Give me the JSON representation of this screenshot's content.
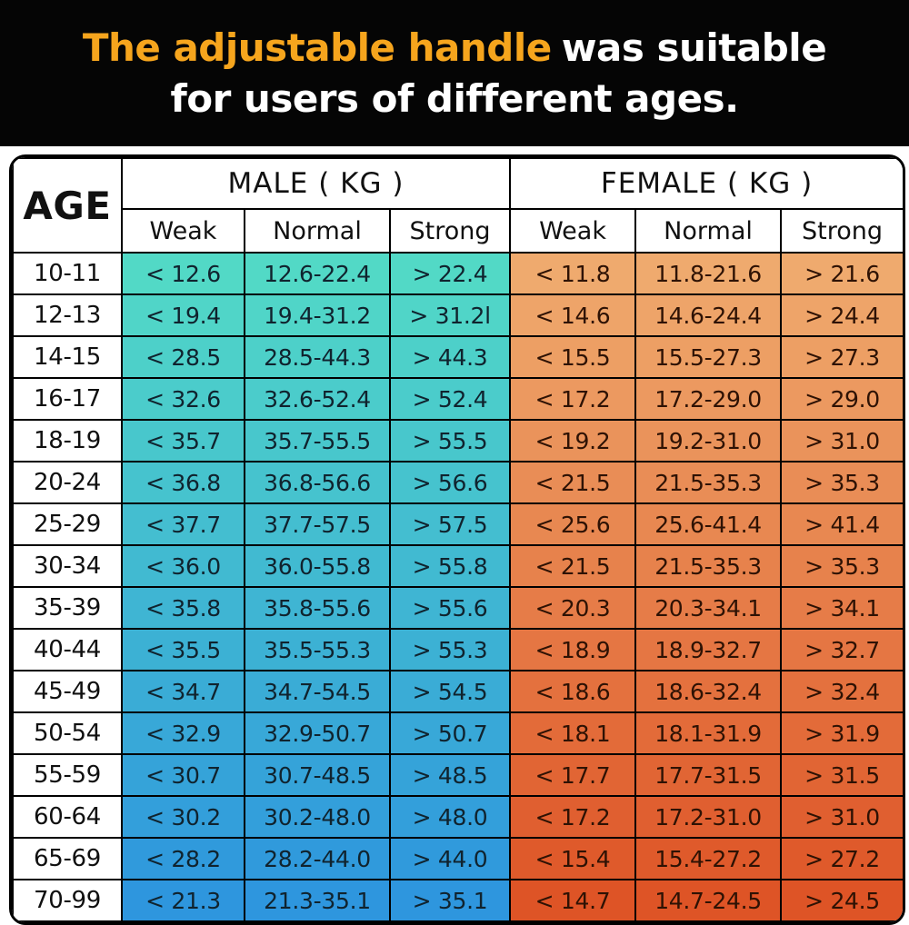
{
  "banner": {
    "title_highlight": "The adjustable handle",
    "title_rest": "was suitable",
    "title_line2": "for users of different ages.",
    "highlight_color": "#F6A51D"
  },
  "chart_data": {
    "type": "table",
    "title": "The adjustable handle was suitable for users of different ages.",
    "age_header": "AGE",
    "groups": [
      {
        "label": "MALE ( KG )",
        "sub": [
          "Weak",
          "Normal",
          "Strong"
        ]
      },
      {
        "label": "FEMALE ( KG )",
        "sub": [
          "Weak",
          "Normal",
          "Strong"
        ]
      }
    ],
    "colors": {
      "male_gradient_top": "#52D9C6",
      "male_gradient_bottom": "#2E96DE",
      "female_gradient_top": "#EFAA6E",
      "female_gradient_bottom": "#DE5426",
      "male_text": "#10232E",
      "female_text": "#2E1204"
    },
    "rows": [
      {
        "age": "10-11",
        "male": [
          "< 12.6",
          "12.6-22.4",
          "> 22.4"
        ],
        "female": [
          "< 11.8",
          "11.8-21.6",
          "> 21.6"
        ]
      },
      {
        "age": "12-13",
        "male": [
          "< 19.4",
          "19.4-31.2",
          "> 31.2l"
        ],
        "female": [
          "< 14.6",
          "14.6-24.4",
          "> 24.4"
        ]
      },
      {
        "age": "14-15",
        "male": [
          "< 28.5",
          "28.5-44.3",
          "> 44.3"
        ],
        "female": [
          "< 15.5",
          "15.5-27.3",
          "> 27.3"
        ]
      },
      {
        "age": "16-17",
        "male": [
          "< 32.6",
          "32.6-52.4",
          "> 52.4"
        ],
        "female": [
          "< 17.2",
          "17.2-29.0",
          "> 29.0"
        ]
      },
      {
        "age": "18-19",
        "male": [
          "< 35.7",
          "35.7-55.5",
          "> 55.5"
        ],
        "female": [
          "< 19.2",
          "19.2-31.0",
          "> 31.0"
        ]
      },
      {
        "age": "20-24",
        "male": [
          "< 36.8",
          "36.8-56.6",
          "> 56.6"
        ],
        "female": [
          "< 21.5",
          "21.5-35.3",
          "> 35.3"
        ]
      },
      {
        "age": "25-29",
        "male": [
          "< 37.7",
          "37.7-57.5",
          "> 57.5"
        ],
        "female": [
          "< 25.6",
          "25.6-41.4",
          "> 41.4"
        ]
      },
      {
        "age": "30-34",
        "male": [
          "< 36.0",
          "36.0-55.8",
          "> 55.8"
        ],
        "female": [
          "< 21.5",
          "21.5-35.3",
          "> 35.3"
        ]
      },
      {
        "age": "35-39",
        "male": [
          "< 35.8",
          "35.8-55.6",
          "> 55.6"
        ],
        "female": [
          "< 20.3",
          "20.3-34.1",
          "> 34.1"
        ]
      },
      {
        "age": "40-44",
        "male": [
          "< 35.5",
          "35.5-55.3",
          "> 55.3"
        ],
        "female": [
          "< 18.9",
          "18.9-32.7",
          "> 32.7"
        ]
      },
      {
        "age": "45-49",
        "male": [
          "< 34.7",
          "34.7-54.5",
          "> 54.5"
        ],
        "female": [
          "< 18.6",
          "18.6-32.4",
          "> 32.4"
        ]
      },
      {
        "age": "50-54",
        "male": [
          "< 32.9",
          "32.9-50.7",
          "> 50.7"
        ],
        "female": [
          "< 18.1",
          "18.1-31.9",
          "> 31.9"
        ]
      },
      {
        "age": "55-59",
        "male": [
          "< 30.7",
          "30.7-48.5",
          "> 48.5"
        ],
        "female": [
          "< 17.7",
          "17.7-31.5",
          "> 31.5"
        ]
      },
      {
        "age": "60-64",
        "male": [
          "< 30.2",
          "30.2-48.0",
          "> 48.0"
        ],
        "female": [
          "< 17.2",
          "17.2-31.0",
          "> 31.0"
        ]
      },
      {
        "age": "65-69",
        "male": [
          "< 28.2",
          "28.2-44.0",
          "> 44.0"
        ],
        "female": [
          "< 15.4",
          "15.4-27.2",
          "> 27.2"
        ]
      },
      {
        "age": "70-99",
        "male": [
          "< 21.3",
          "21.3-35.1",
          "> 35.1"
        ],
        "female": [
          "< 14.7",
          "14.7-24.5",
          "> 24.5"
        ]
      }
    ]
  }
}
